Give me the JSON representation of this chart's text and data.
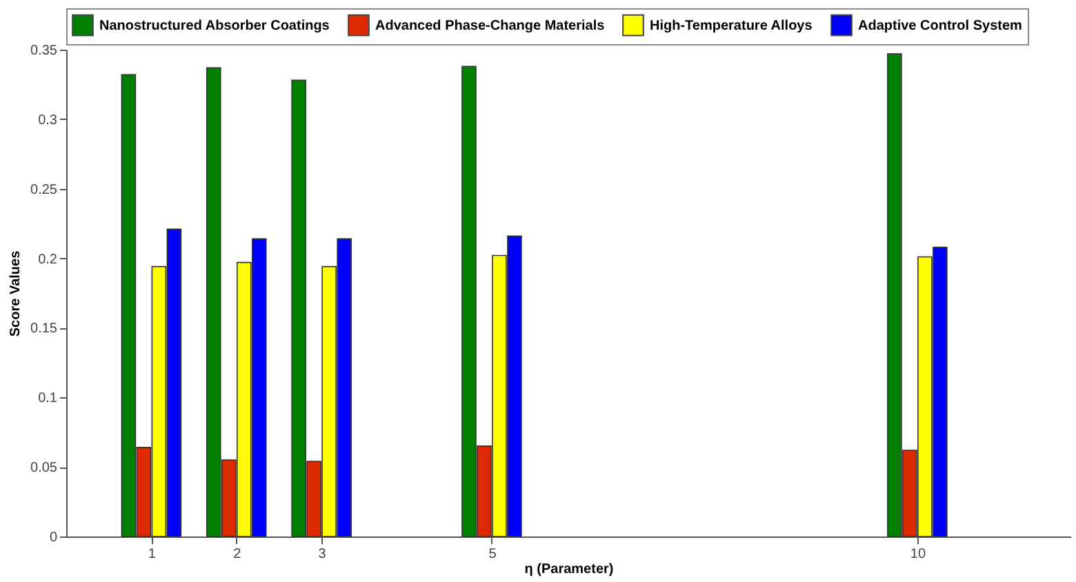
{
  "chart_data": {
    "type": "bar",
    "xlabel": "η (Parameter)",
    "ylabel": "Score Values",
    "x": [
      1,
      2,
      3,
      5,
      10
    ],
    "series": [
      {
        "name": "Nanostructured Absorber Coatings",
        "color": "#007f00",
        "values": [
          0.332,
          0.337,
          0.328,
          0.338,
          0.347
        ]
      },
      {
        "name": "Advanced Phase-Change Materials",
        "color": "#dd2a00",
        "values": [
          0.064,
          0.055,
          0.054,
          0.065,
          0.062
        ]
      },
      {
        "name": "High-Temperature Alloys",
        "color": "#ffff00",
        "values": [
          0.194,
          0.197,
          0.194,
          0.202,
          0.201
        ]
      },
      {
        "name": "Adaptive Control System",
        "color": "#0000ff",
        "values": [
          0.221,
          0.214,
          0.214,
          0.216,
          0.208
        ]
      }
    ],
    "xlim": [
      0,
      11.8
    ],
    "xticks": [
      1,
      2,
      3,
      5,
      10
    ],
    "ylim": [
      0,
      0.35
    ],
    "yticks": [
      0,
      0.05,
      0.1,
      0.15,
      0.2,
      0.25,
      0.3,
      0.35
    ],
    "grid": false,
    "legend": "top"
  }
}
